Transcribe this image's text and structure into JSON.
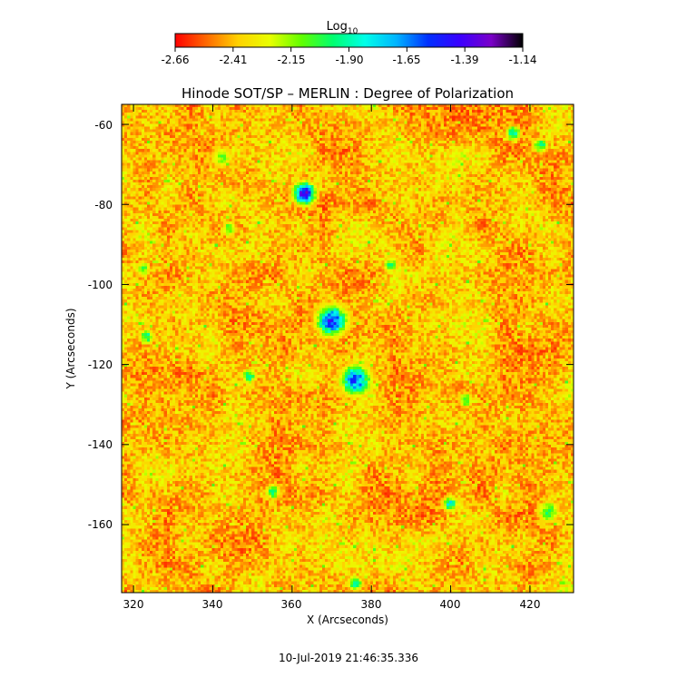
{
  "colorbar": {
    "label_main": "Log",
    "label_sub": "10",
    "tick_labels": [
      "-2.66",
      "-2.41",
      "-2.15",
      "-1.90",
      "-1.65",
      "-1.39",
      "-1.14"
    ],
    "range": [
      -2.66,
      -1.14
    ],
    "colors": [
      "#ff0000",
      "#ff6a00",
      "#ffd200",
      "#e8ff00",
      "#60ff00",
      "#00ff70",
      "#00ffe8",
      "#00b4ff",
      "#0030ff",
      "#3a00ff",
      "#7a00c8",
      "#000000"
    ]
  },
  "chart_data": {
    "type": "heatmap",
    "title": "Hinode SOT/SP – MERLIN : Degree of Polarization",
    "xlabel": "X (Arcseconds)",
    "ylabel": "Y (Arcseconds)",
    "xlim": [
      317,
      431
    ],
    "ylim": [
      -177,
      -55
    ],
    "xticks": [
      320,
      340,
      360,
      380,
      400,
      420
    ],
    "yticks": [
      -60,
      -80,
      -100,
      -120,
      -140,
      -160
    ],
    "xtick_labels": [
      "320",
      "340",
      "360",
      "380",
      "400",
      "420"
    ],
    "ytick_labels": [
      "-60",
      "-80",
      "-100",
      "-120",
      "-140",
      "-160"
    ],
    "value_range": [
      -2.66,
      -1.14
    ],
    "features": [
      {
        "x": 363,
        "y": -77,
        "peak": -1.2,
        "extent": 3
      },
      {
        "x": 370,
        "y": -109,
        "peak": -1.3,
        "extent": 4
      },
      {
        "x": 376,
        "y": -124,
        "peak": -1.4,
        "extent": 4
      },
      {
        "x": 344,
        "y": -86,
        "peak": -1.9,
        "extent": 2
      },
      {
        "x": 323,
        "y": -113,
        "peak": -1.8,
        "extent": 2
      },
      {
        "x": 416,
        "y": -62,
        "peak": -1.7,
        "extent": 2
      },
      {
        "x": 423,
        "y": -65,
        "peak": -1.8,
        "extent": 2
      },
      {
        "x": 425,
        "y": -157,
        "peak": -1.9,
        "extent": 3
      },
      {
        "x": 400,
        "y": -155,
        "peak": -1.7,
        "extent": 2
      },
      {
        "x": 376,
        "y": -175,
        "peak": -1.8,
        "extent": 2
      },
      {
        "x": 355,
        "y": -152,
        "peak": -1.8,
        "extent": 2
      },
      {
        "x": 349,
        "y": -123,
        "peak": -1.8,
        "extent": 2
      },
      {
        "x": 404,
        "y": -129,
        "peak": -1.9,
        "extent": 2
      },
      {
        "x": 322,
        "y": -96,
        "peak": -1.9,
        "extent": 2
      },
      {
        "x": 342,
        "y": -68,
        "peak": -2.0,
        "extent": 3
      },
      {
        "x": 385,
        "y": -95,
        "peak": -1.9,
        "extent": 2
      }
    ]
  },
  "footer": {
    "timestamp": "10-Jul-2019 21:46:35.336"
  }
}
